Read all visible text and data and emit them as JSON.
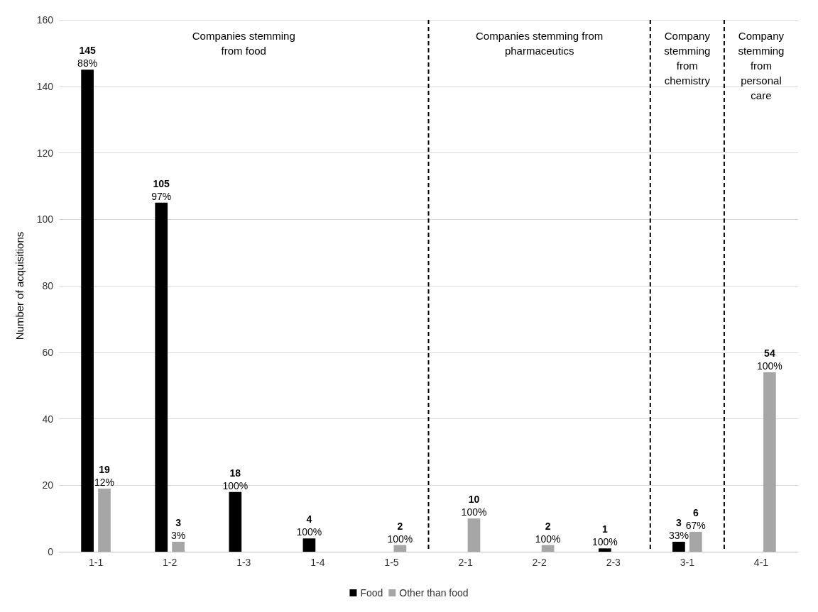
{
  "chart_data": {
    "type": "bar",
    "ylabel": "Number of acquisitions",
    "categories": [
      "1-1",
      "1-2",
      "1-3",
      "1-4",
      "1-5",
      "2-1",
      "2-2",
      "2-3",
      "3-1",
      "4-1"
    ],
    "series": [
      {
        "name": "Food",
        "color": "#000000",
        "values": [
          145,
          105,
          18,
          4,
          null,
          null,
          null,
          1,
          3,
          null
        ]
      },
      {
        "name": "Other than food",
        "color": "#a6a6a6",
        "values": [
          19,
          3,
          null,
          null,
          2,
          10,
          2,
          null,
          6,
          54
        ]
      }
    ],
    "data_labels": true,
    "ylim": [
      0,
      160
    ],
    "yticks": [
      0,
      20,
      40,
      60,
      80,
      100,
      120,
      140,
      160
    ],
    "grid": "y",
    "legend": "bottom",
    "annotations": [
      "Companies stemming\nfrom food",
      "Companies stemming from\npharmaceutics",
      "Company\nstemming\nfrom\nchemistry",
      "Company\nstemming\nfrom\npersonal\ncare",
      {
        "text": "88%",
        "x": "1-1",
        "y": 145
      },
      {
        "text": "12%",
        "x": "1-1",
        "y": 19
      },
      {
        "text": "97%",
        "x": "1-2",
        "y": 105
      },
      {
        "text": "3%",
        "x": "1-2",
        "y": 3
      },
      {
        "text": "100%",
        "x": "1-3",
        "y": 18
      },
      {
        "text": "100%",
        "x": "1-4",
        "y": 4
      },
      {
        "text": "100%",
        "x": "1-5",
        "y": 2
      },
      {
        "text": "100%",
        "x": "2-1",
        "y": 10
      },
      {
        "text": "100%",
        "x": "2-2",
        "y": 2
      },
      {
        "text": "100%",
        "x": "2-3",
        "y": 1
      },
      {
        "text": "33%",
        "x": "3-1",
        "y": 3
      },
      {
        "text": "67%",
        "x": "3-1",
        "y": 6
      },
      {
        "text": "100%",
        "x": "4-1",
        "y": 54
      }
    ]
  }
}
